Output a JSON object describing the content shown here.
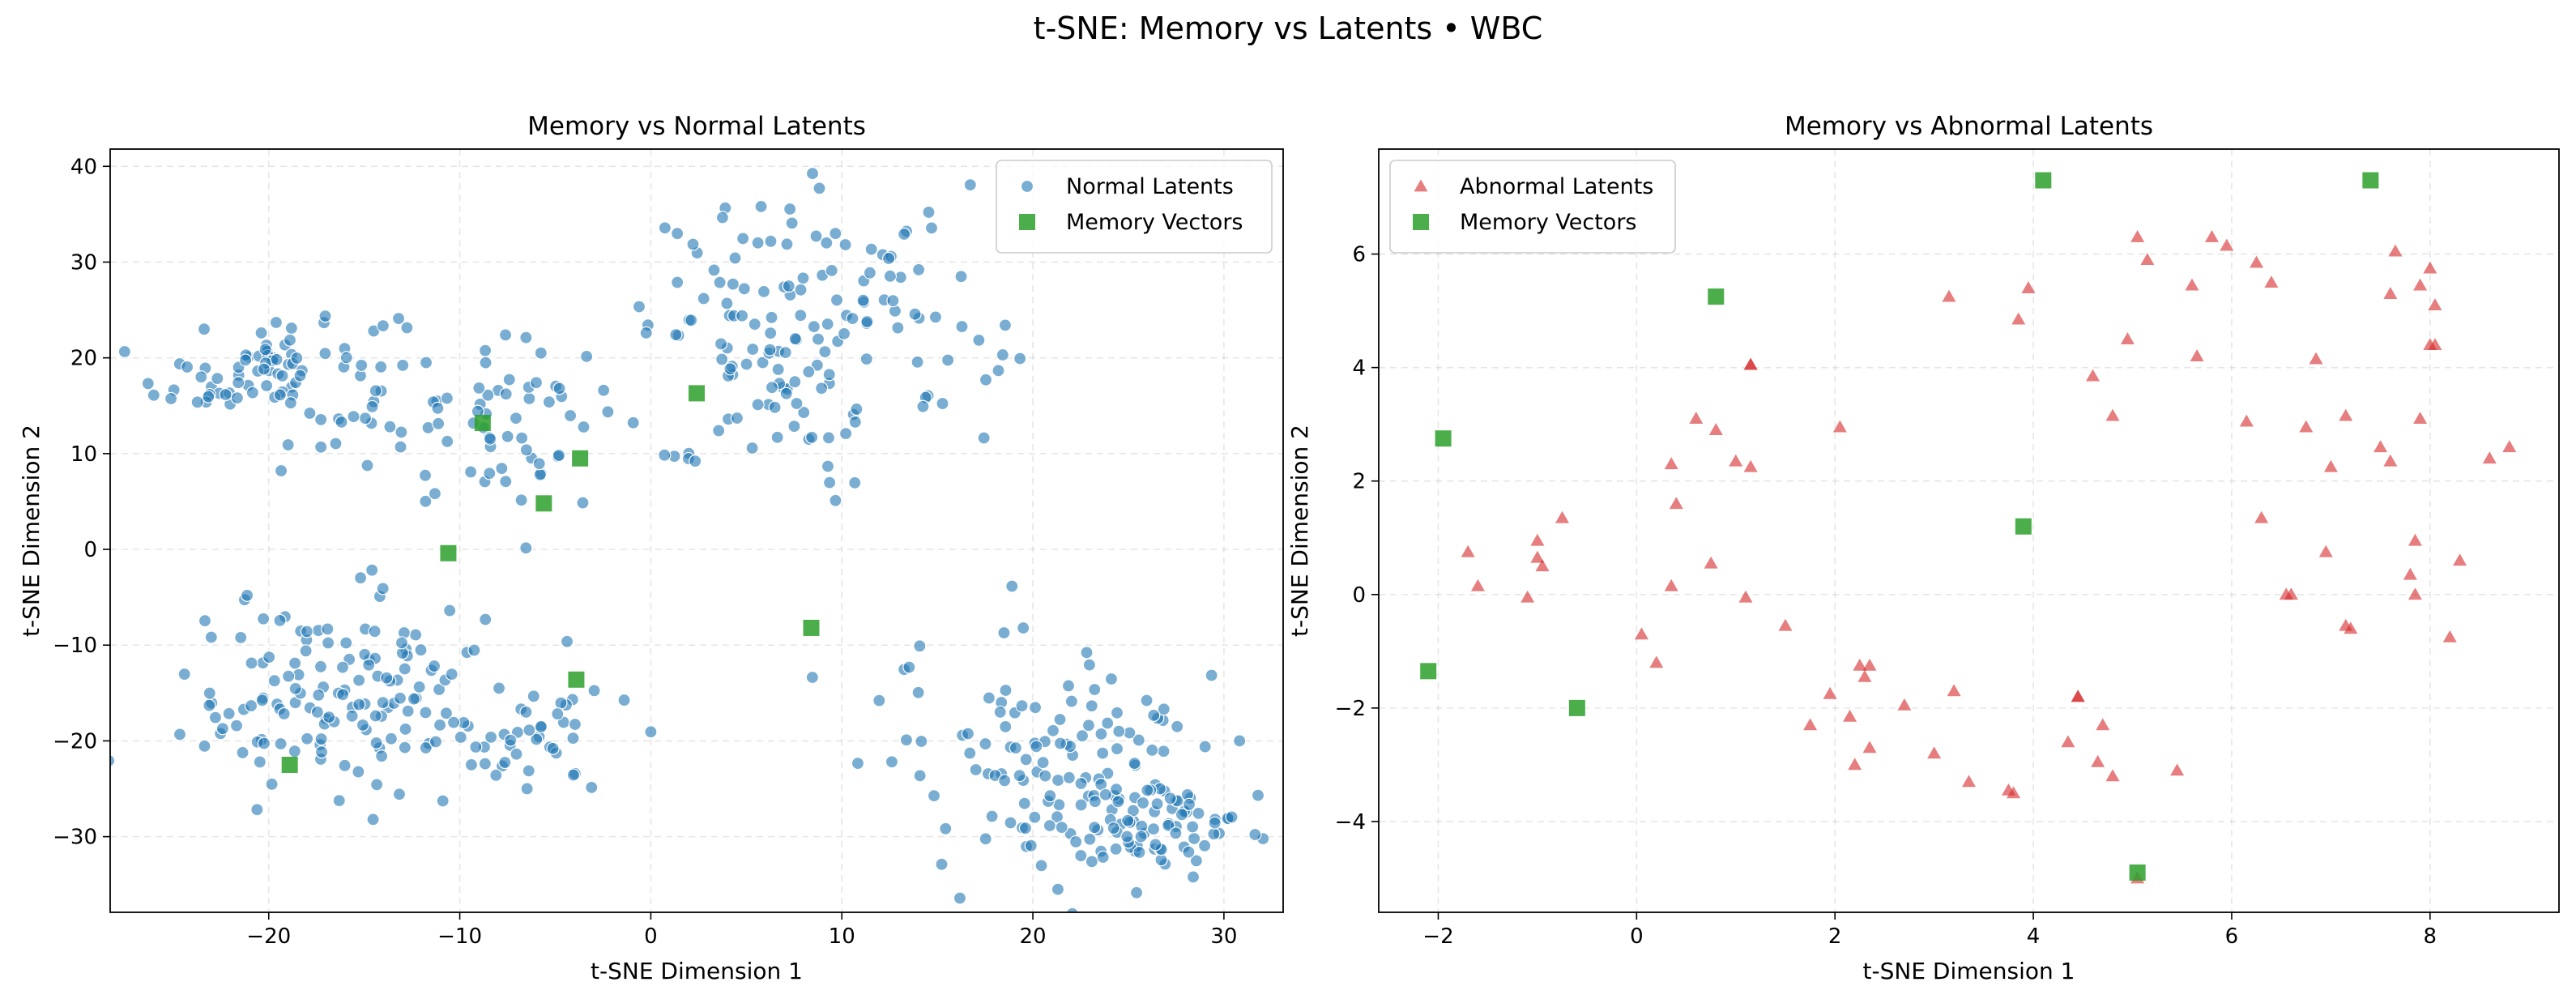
{
  "figure": {
    "suptitle": "t-SNE: Memory vs Latents • WBC"
  },
  "chart_data": [
    {
      "type": "scatter",
      "title": "Memory vs Normal Latents",
      "xlabel": "t-SNE Dimension 1",
      "ylabel": "t-SNE Dimension 2",
      "xlim": [
        -28.3,
        33.1
      ],
      "ylim": [
        -37.9,
        41.8
      ],
      "xticks": [
        -20,
        -10,
        0,
        10,
        20,
        30
      ],
      "yticks": [
        -30,
        -20,
        -10,
        0,
        10,
        20,
        30,
        40
      ],
      "grid": true,
      "legend": "top-right",
      "series": [
        {
          "name": "Normal Latents",
          "marker": "circle",
          "color": "#1f77b4",
          "clusters": [
            {
              "cx": -19.5,
              "cy": 18.5,
              "sx": 3.2,
              "sy": 3.6,
              "n": 95
            },
            {
              "cx": -8.0,
              "cy": 13.0,
              "sx": 3.2,
              "sy": 4.2,
              "n": 60
            },
            {
              "cx": 9.0,
              "cy": 23.0,
              "sx": 4.5,
              "sy": 7.0,
              "n": 150
            },
            {
              "cx": 1.0,
              "cy": 10.5,
              "sx": 1.0,
              "sy": 1.0,
              "n": 6
            },
            {
              "cx": -16.0,
              "cy": -15.5,
              "sx": 4.3,
              "sy": 5.2,
              "n": 150
            },
            {
              "cx": -6.0,
              "cy": -19.5,
              "sx": 2.4,
              "sy": 2.8,
              "n": 35
            },
            {
              "cx": 21.5,
              "cy": -22.0,
              "sx": 4.5,
              "sy": 6.5,
              "n": 140
            },
            {
              "cx": 27.0,
              "cy": -29.0,
              "sx": 3.0,
              "sy": 2.5,
              "n": 55
            }
          ]
        },
        {
          "name": "Memory Vectors",
          "marker": "square",
          "color": "#2ca02c",
          "x": [
            2.4,
            -8.8,
            -5.6,
            -3.7,
            -10.6,
            8.4,
            -3.9,
            -18.9
          ],
          "y": [
            16.3,
            13.2,
            4.8,
            9.5,
            -0.4,
            -8.2,
            -13.6,
            -22.5
          ]
        }
      ]
    },
    {
      "type": "scatter",
      "title": "Memory vs Abnormal Latents",
      "xlabel": "t-SNE Dimension 1",
      "ylabel": "t-SNE Dimension 2",
      "xlim": [
        -2.6,
        9.3
      ],
      "ylim": [
        -5.6,
        7.85
      ],
      "xticks": [
        -2,
        0,
        2,
        4,
        6,
        8
      ],
      "yticks": [
        -4,
        -2,
        0,
        2,
        4,
        6
      ],
      "grid": true,
      "legend": "top-left",
      "series": [
        {
          "name": "Abnormal Latents",
          "marker": "triangle",
          "color": "#d62728",
          "x": [
            -1.7,
            -1.6,
            -1.1,
            -1.0,
            -1.0,
            -0.95,
            -0.75,
            0.05,
            0.2,
            0.35,
            0.35,
            0.4,
            0.6,
            0.75,
            0.8,
            1.0,
            1.1,
            1.15,
            1.15,
            1.15,
            1.5,
            1.75,
            1.95,
            2.05,
            2.15,
            2.2,
            2.25,
            2.3,
            2.35,
            2.35,
            2.7,
            3.0,
            3.15,
            3.2,
            3.35,
            3.75,
            3.8,
            3.85,
            3.95,
            4.35,
            4.45,
            4.45,
            4.6,
            4.65,
            4.7,
            4.8,
            4.8,
            4.95,
            5.05,
            5.05,
            5.15,
            5.45,
            5.6,
            5.65,
            5.8,
            5.95,
            6.15,
            6.25,
            6.3,
            6.4,
            6.55,
            6.6,
            6.75,
            6.85,
            6.95,
            7.0,
            7.15,
            7.15,
            7.2,
            7.5,
            7.6,
            7.6,
            7.65,
            7.8,
            7.85,
            7.85,
            7.9,
            7.9,
            8.0,
            8.0,
            8.05,
            8.05,
            8.2,
            8.3,
            8.6,
            8.8
          ],
          "y": [
            0.75,
            0.15,
            -0.05,
            0.65,
            0.95,
            0.5,
            1.35,
            -0.7,
            -1.2,
            0.15,
            2.3,
            1.6,
            3.1,
            0.55,
            2.9,
            2.35,
            -0.05,
            4.05,
            4.05,
            2.25,
            -0.55,
            -2.3,
            -1.75,
            2.95,
            -2.15,
            -3.0,
            -1.25,
            -1.45,
            -2.7,
            -1.25,
            -1.95,
            -2.8,
            5.25,
            -1.7,
            -3.3,
            -3.45,
            -3.5,
            4.85,
            5.4,
            -2.6,
            -1.8,
            -1.8,
            3.85,
            -2.95,
            -2.3,
            3.15,
            -3.2,
            4.5,
            6.3,
            -5.0,
            5.9,
            -3.1,
            5.45,
            4.2,
            6.3,
            6.15,
            3.05,
            5.85,
            1.35,
            5.5,
            0.0,
            0.0,
            2.95,
            4.15,
            0.75,
            2.25,
            3.15,
            -0.55,
            -0.6,
            2.6,
            5.3,
            2.35,
            6.05,
            0.35,
            0.0,
            0.95,
            3.1,
            5.45,
            4.4,
            5.75,
            5.1,
            4.4,
            -0.75,
            0.6,
            2.4,
            2.6
          ]
        },
        {
          "name": "Memory Vectors",
          "marker": "square",
          "color": "#2ca02c",
          "x": [
            4.1,
            7.4,
            0.8,
            -1.95,
            3.9,
            -2.1,
            -0.6,
            5.05
          ],
          "y": [
            7.3,
            7.3,
            5.25,
            2.75,
            1.2,
            -1.35,
            -2.0,
            -4.9
          ]
        }
      ]
    }
  ]
}
